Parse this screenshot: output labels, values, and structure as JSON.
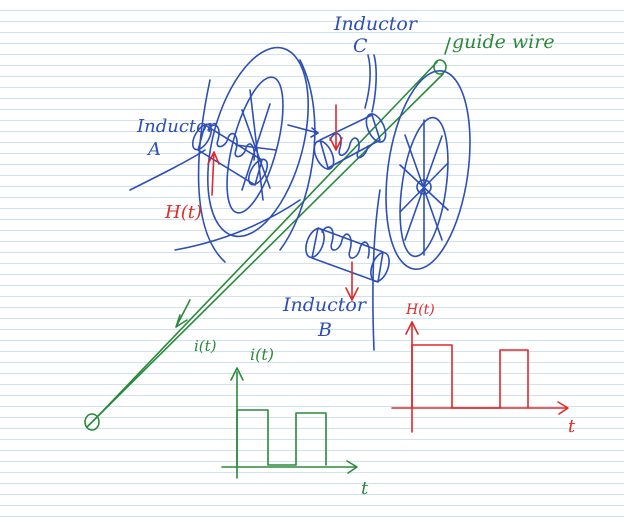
{
  "labels": {
    "inductor_c": [
      "Inductor",
      "C"
    ],
    "inductor_a": [
      "Inductor",
      "A"
    ],
    "inductor_b": [
      "Inductor",
      "B"
    ],
    "guide_wire": "guide wire",
    "field_h": "H(t)",
    "current_i": "i(t)"
  },
  "graphs": {
    "current": {
      "ylabel": "i(t)",
      "xlabel": "t"
    },
    "field": {
      "ylabel": "H(t)",
      "xlabel": "t"
    }
  },
  "colors": {
    "blue": "#2e4fb5",
    "green": "#2a8a3a",
    "red": "#e02a2a",
    "rule_lines": "#cfe3ef"
  }
}
